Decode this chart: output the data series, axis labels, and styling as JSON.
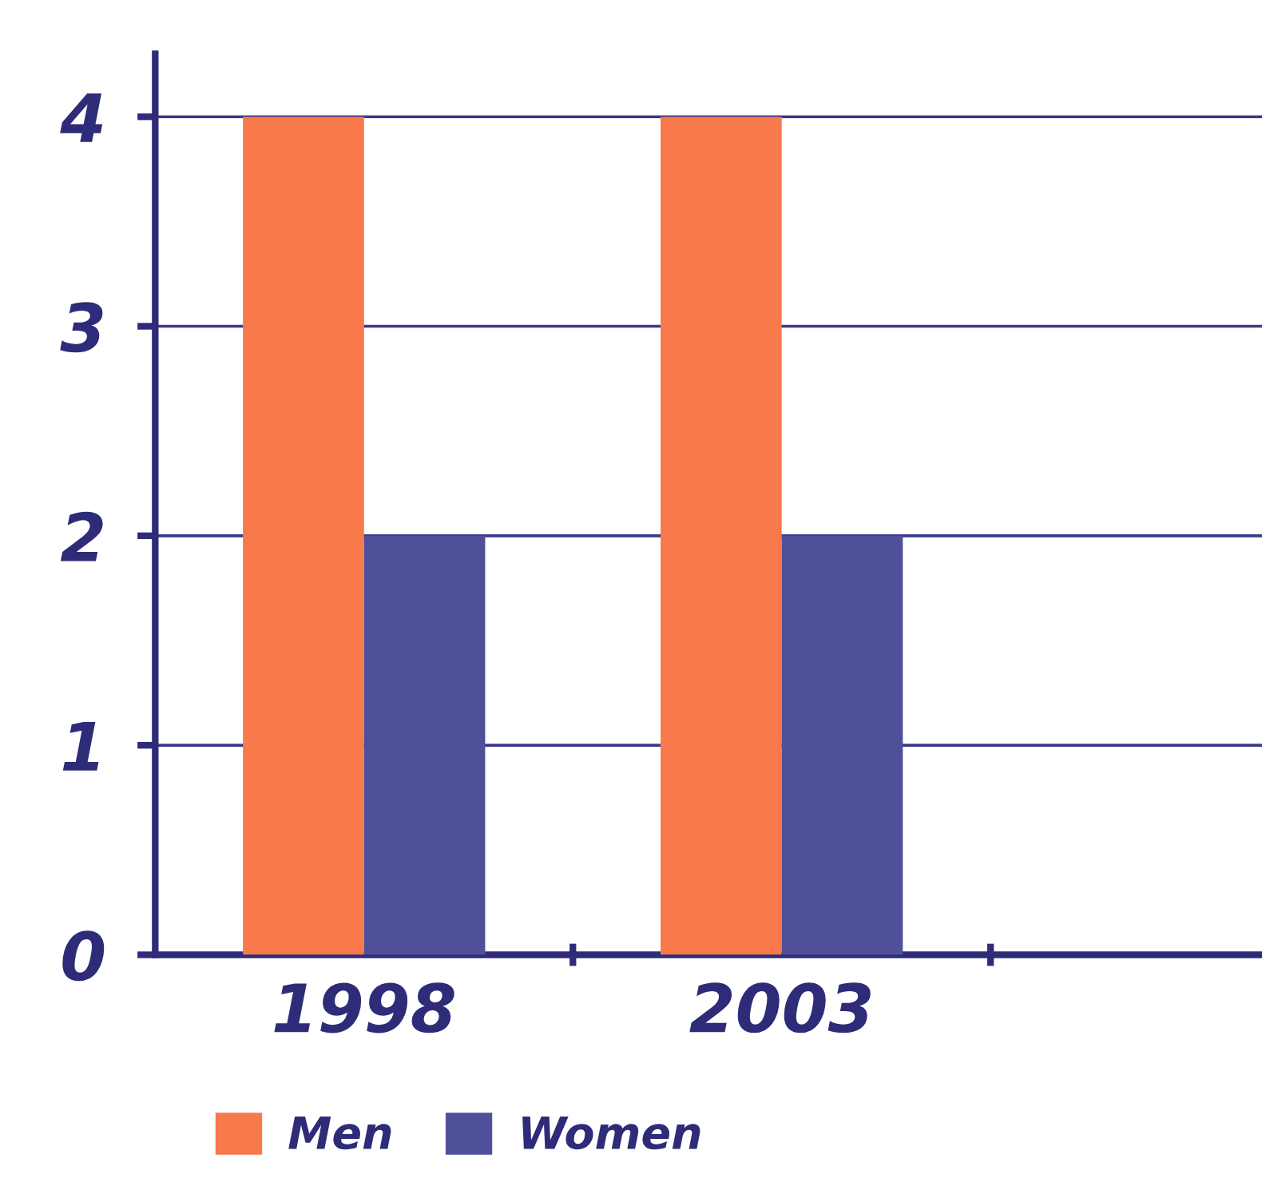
{
  "chart_data": {
    "type": "bar",
    "categories": [
      "1998",
      "2003"
    ],
    "series": [
      {
        "name": "Men",
        "color": "#f7794c",
        "values": [
          4,
          4
        ]
      },
      {
        "name": "Women",
        "color": "#50509a",
        "values": [
          2,
          2
        ]
      }
    ],
    "ylim": [
      0,
      4.3
    ],
    "yticks": [
      0,
      1,
      2,
      3,
      4
    ],
    "grid": "y",
    "legend": "bottom left"
  }
}
